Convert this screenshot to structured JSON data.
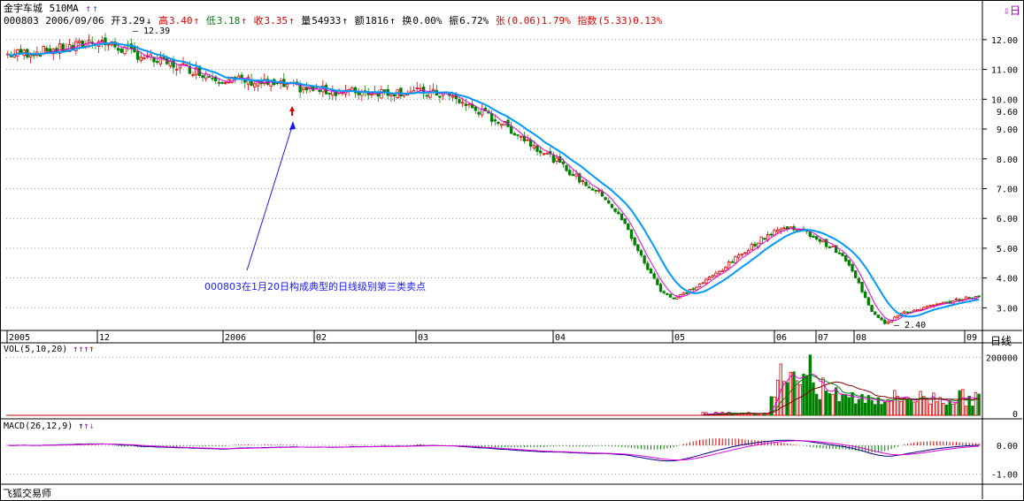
{
  "header": {
    "stock_name": "金宇车城",
    "ma_label": "510MA",
    "code": "000803",
    "date": "2006/09/06",
    "open_label": "开",
    "open": "3.29",
    "high_label": "高",
    "high": "3.40",
    "low_label": "低",
    "low": "3.18",
    "close_label": "收",
    "close": "3.35",
    "volume_label": "量",
    "volume": "54933",
    "amount_label": "额",
    "amount": "1816",
    "turnover_label": "换",
    "turnover": "0.00%",
    "amplitude_label": "振",
    "amplitude": "6.72%",
    "change_label": "张",
    "change": "(0.06)1.79%",
    "index_label": "指数",
    "index": "(5.33)0.13%"
  },
  "annotations": {
    "peak_label": "12.39",
    "trough_label": "2.40",
    "note": "000803在1月20日构成典型的日线级别第三类卖点",
    "current_price_tag": "9.60"
  },
  "vol_panel": {
    "label": "VOL(5,10,20)",
    "scale_top": "200000",
    "scale_zero": "0"
  },
  "macd_panel": {
    "label": "MACD(26,12,9)",
    "scale_top": "0.00",
    "scale_bot": "-1.00"
  },
  "axis": {
    "day_label": "日线",
    "corner_icon": "⇩日"
  },
  "footer": "飞狐交易师",
  "colors": {
    "up": "#e00000",
    "down": "#008000",
    "ma5": "#e000e0",
    "ma10": "#0099ff",
    "vol_ma20": "#800000",
    "macd_dif": "#000080"
  },
  "chart_data": {
    "type": "candlestick",
    "y_ticks": [
      "12.00",
      "11.00",
      "10.00",
      "9.00",
      "8.00",
      "7.00",
      "6.00",
      "5.00",
      "4.00",
      "3.00"
    ],
    "ylim": [
      2.3,
      12.5
    ],
    "x_ticks": [
      "2005",
      "12",
      "2006",
      "02",
      "03",
      "04",
      "05",
      "06",
      "07",
      "08",
      "09"
    ],
    "price_path": [
      [
        0,
        11.5
      ],
      [
        10,
        11.6
      ],
      [
        20,
        11.75
      ],
      [
        27,
        12.0
      ],
      [
        35,
        11.7
      ],
      [
        45,
        11.3
      ],
      [
        55,
        11.05
      ],
      [
        65,
        10.7
      ],
      [
        75,
        10.6
      ],
      [
        85,
        10.45
      ],
      [
        95,
        10.3
      ],
      [
        105,
        10.25
      ],
      [
        115,
        10.25
      ],
      [
        125,
        10.25
      ],
      [
        135,
        10.15
      ],
      [
        145,
        9.6
      ],
      [
        152,
        9.2
      ],
      [
        160,
        8.6
      ],
      [
        168,
        8.0
      ],
      [
        176,
        7.3
      ],
      [
        184,
        6.7
      ],
      [
        190,
        5.8
      ],
      [
        196,
        4.5
      ],
      [
        201,
        3.6
      ],
      [
        205,
        3.3
      ],
      [
        212,
        3.7
      ],
      [
        220,
        4.3
      ],
      [
        228,
        5.0
      ],
      [
        236,
        5.6
      ],
      [
        242,
        5.7
      ],
      [
        248,
        5.4
      ],
      [
        254,
        5.0
      ],
      [
        258,
        4.6
      ],
      [
        262,
        3.8
      ],
      [
        266,
        2.9
      ],
      [
        270,
        2.5
      ],
      [
        275,
        2.8
      ],
      [
        282,
        3.0
      ],
      [
        290,
        3.2
      ],
      [
        296,
        3.35
      ]
    ],
    "vol_scale_max": 220000,
    "macd_range": [
      -1.35,
      0.8
    ]
  }
}
